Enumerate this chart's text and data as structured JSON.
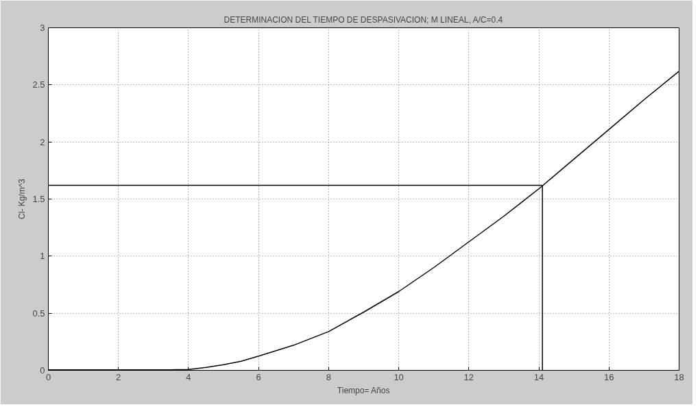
{
  "chart_data": {
    "type": "line",
    "title": "DETERMINACION DEL TIEMPO DE DESPASIVACION; M LINEAL, A/C=0.4",
    "xlabel": "Tiempo= Años",
    "ylabel": "Cl- Kg/m^3",
    "x": [
      0,
      1,
      2,
      3,
      3.5,
      4,
      4.5,
      5,
      5.5,
      6,
      7,
      8,
      9,
      10,
      11,
      12,
      13,
      14,
      15,
      16,
      17,
      18
    ],
    "series": [
      {
        "color": "#000000",
        "values": [
          0.005,
          0.005,
          0.005,
          0.005,
          0.005,
          0.008,
          0.025,
          0.05,
          0.08,
          0.125,
          0.22,
          0.34,
          0.51,
          0.69,
          0.9,
          1.125,
          1.35,
          1.59,
          1.85,
          2.11,
          2.37,
          2.62
        ]
      }
    ],
    "ref_lines": [
      {
        "axis": "y",
        "value": 1.62,
        "color": "#000000"
      },
      {
        "axis": "x",
        "value": 14.1,
        "color": "#000000"
      }
    ],
    "xlim": [
      0,
      18
    ],
    "ylim": [
      0,
      3
    ],
    "xticks": [
      0,
      2,
      4,
      6,
      8,
      10,
      12,
      14,
      16,
      18
    ],
    "yticks": [
      0,
      0.5,
      1,
      1.5,
      2,
      2.5,
      3
    ],
    "grid": true,
    "line_style": "solid",
    "marker": "none"
  }
}
